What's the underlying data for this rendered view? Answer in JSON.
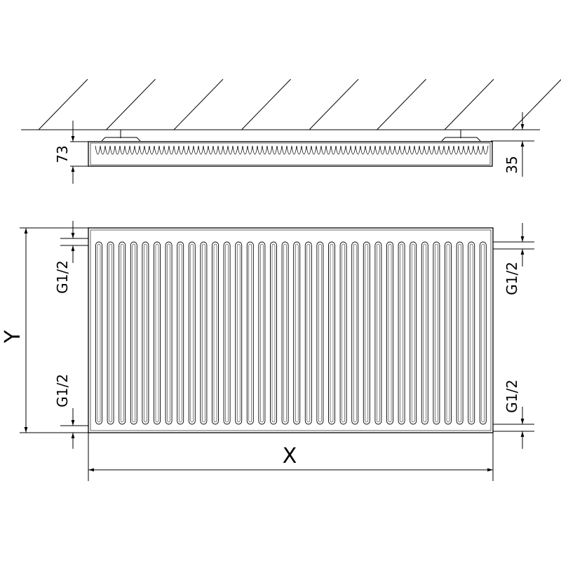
{
  "top_view": {
    "depth_label": "73",
    "wall_gap_label": "35"
  },
  "front_view": {
    "left_top_connection_label": "G1/2",
    "left_bottom_connection_label": "G1/2",
    "right_top_connection_label": "G1/2",
    "right_bottom_connection_label": "G1/2",
    "height_label": "Y",
    "width_label": "X"
  },
  "colors": {
    "line": "#000000",
    "background": "#ffffff"
  }
}
